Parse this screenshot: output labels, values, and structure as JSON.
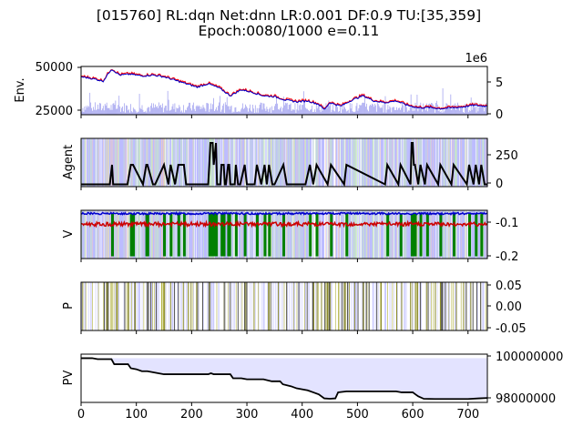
{
  "chart_data": {
    "type": "multi-panel",
    "title_line1": "[015760] RL:dqn Net:dnn LR:0.001 DF:0.9 TU:[35,359]",
    "title_line2": "Epoch:0080/1000 e=0.11",
    "x_ticks": [
      "0",
      "100",
      "200",
      "300",
      "400",
      "500",
      "600",
      "700"
    ],
    "xlim": [
      0,
      735
    ],
    "panels": [
      {
        "id": "env",
        "ylabel": "Env.",
        "left_ticks": [
          "25000",
          "50000"
        ],
        "right_ticks": [
          "0",
          "5"
        ],
        "right_offset_label": "1e6",
        "ylim_left": [
          22000,
          50000
        ],
        "ylim_right": [
          0,
          7500000
        ],
        "series": [
          {
            "kind": "price",
            "x": [
              0,
              20,
              40,
              55,
              70,
              90,
              110,
              130,
              150,
              170,
              190,
              210,
              230,
              250,
              270,
              290,
              310,
              330,
              350,
              370,
              390,
              410,
              430,
              440,
              450,
              470,
              490,
              510,
              530,
              550,
              570,
              590,
              610,
              630,
              650,
              670,
              690,
              710,
              730
            ],
            "values": [
              44000,
              43000,
              41500,
              48500,
              45000,
              45500,
              44500,
              45000,
              44000,
              42000,
              40000,
              38000,
              40000,
              37500,
              33000,
              36500,
              35000,
              33000,
              32500,
              30500,
              29500,
              30000,
              28000,
              25000,
              29000,
              27000,
              30500,
              33000,
              30000,
              29000,
              30000,
              27500,
              26000,
              26200,
              25500,
              26000,
              26500,
              27500,
              27000
            ]
          },
          {
            "kind": "volume",
            "summary": "daily volume bars, mostly 0.5–2e6 with spikes up to ~4e6"
          }
        ]
      },
      {
        "id": "agent",
        "ylabel": "Agent",
        "right_ticks": [
          "0",
          "250"
        ],
        "ylim": [
          -20,
          400
        ],
        "series": [
          {
            "kind": "holdings",
            "x": [
              0,
              52,
              56,
              58,
              84,
              90,
              94,
              112,
              118,
              120,
              130,
              134,
              150,
              158,
              162,
              170,
              176,
              186,
              190,
              230,
              232,
              234,
              238,
              240,
              244,
              246,
              252,
              254,
              258,
              260,
              262,
              266,
              268,
              270,
              278,
              280,
              284,
              288,
              296,
              300,
              314,
              318,
              326,
              332,
              336,
              340,
              346,
              350,
              366,
              372,
              406,
              414,
              420,
              426,
              446,
              452,
              476,
              480,
              550,
              554,
              574,
              578,
              596,
              598,
              600,
              602,
              604,
              610,
              614,
              622,
              626,
              646,
              650,
              670,
              674,
              698,
              702,
              710,
              714,
              720,
              724,
              730,
              735
            ],
            "values": [
              0,
              0,
              170,
              0,
              0,
              170,
              170,
              0,
              170,
              170,
              0,
              0,
              170,
              0,
              170,
              0,
              170,
              170,
              0,
              0,
              170,
              360,
              360,
              170,
              360,
              0,
              0,
              170,
              170,
              0,
              0,
              170,
              170,
              0,
              0,
              170,
              0,
              0,
              170,
              0,
              0,
              170,
              0,
              170,
              0,
              170,
              0,
              0,
              170,
              0,
              0,
              170,
              0,
              170,
              0,
              170,
              0,
              170,
              0,
              170,
              0,
              170,
              0,
              360,
              360,
              170,
              170,
              0,
              170,
              0,
              170,
              0,
              170,
              0,
              170,
              0,
              170,
              0,
              170,
              0,
              170,
              0,
              0
            ]
          }
        ]
      },
      {
        "id": "v",
        "ylabel": "V",
        "right_ticks": [
          "-0.2",
          "-0.1"
        ],
        "ylim": [
          -0.205,
          -0.055
        ],
        "series": [
          {
            "kind": "v_top",
            "color": "#0000cc",
            "level": -0.065
          },
          {
            "kind": "v_mid",
            "color": "#cc0000",
            "level": -0.098
          },
          {
            "kind": "v_hold",
            "color": "#008000"
          }
        ]
      },
      {
        "id": "p",
        "ylabel": "P",
        "right_ticks": [
          "-0.05",
          "0.00",
          "0.05"
        ],
        "ylim": [
          -0.055,
          0.055
        ]
      },
      {
        "id": "pv",
        "ylabel": "PV",
        "right_ticks": [
          "98000000",
          "100000000"
        ],
        "ylim": [
          97800000,
          100200000
        ],
        "series": [
          {
            "kind": "portfolio",
            "x": [
              0,
              20,
              30,
              55,
              60,
              85,
              90,
              100,
              110,
              120,
              140,
              150,
              160,
              230,
              235,
              240,
              270,
              275,
              290,
              300,
              330,
              345,
              360,
              365,
              380,
              390,
              400,
              410,
              420,
              430,
              440,
              450,
              460,
              465,
              480,
              500,
              540,
              570,
              580,
              600,
              605,
              610,
              620,
              640,
              660,
              700,
              720,
              735
            ],
            "values": [
              100000000,
              100000000,
              99950000,
              99950000,
              99700000,
              99700000,
              99500000,
              99450000,
              99350000,
              99350000,
              99250000,
              99200000,
              99200000,
              99200000,
              99250000,
              99200000,
              99200000,
              99000000,
              99000000,
              98950000,
              98950000,
              98850000,
              98850000,
              98700000,
              98600000,
              98500000,
              98450000,
              98400000,
              98300000,
              98200000,
              98000000,
              97980000,
              98000000,
              98300000,
              98350000,
              98350000,
              98350000,
              98350000,
              98300000,
              98300000,
              98200000,
              98100000,
              97980000,
              97970000,
              97970000,
              97970000,
              98000000,
              98020000
            ]
          }
        ]
      }
    ]
  }
}
